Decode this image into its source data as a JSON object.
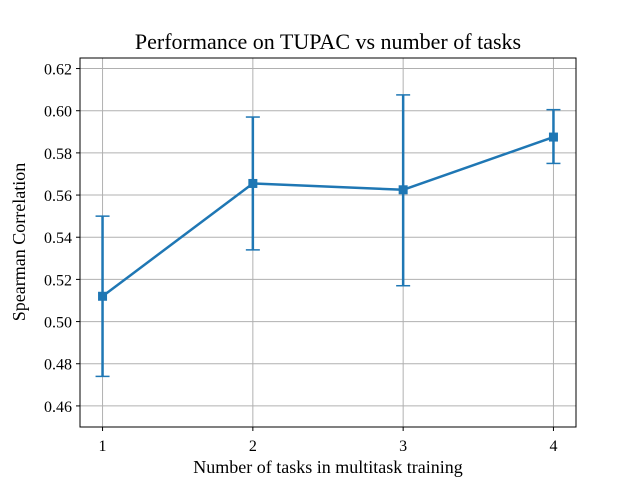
{
  "chart_data": {
    "type": "line",
    "title": "Performance on TUPAC vs number of tasks",
    "xlabel": "Number of tasks in multitask training",
    "ylabel": "Spearman Correlation",
    "x": [
      1,
      2,
      3,
      4
    ],
    "xlim": [
      0.85,
      4.15
    ],
    "ylim": [
      0.45,
      0.625
    ],
    "xticks": [
      "1",
      "2",
      "3",
      "4"
    ],
    "yticks": [
      "0.46",
      "0.48",
      "0.50",
      "0.52",
      "0.54",
      "0.56",
      "0.58",
      "0.60",
      "0.62"
    ],
    "grid": true,
    "series": [
      {
        "values": [
          0.512,
          0.5655,
          0.5625,
          0.5875
        ],
        "error_low": [
          0.474,
          0.534,
          0.517,
          0.575
        ],
        "error_high": [
          0.55,
          0.597,
          0.6075,
          0.6005
        ],
        "marker": "square",
        "color": "#1f77b4"
      }
    ]
  }
}
